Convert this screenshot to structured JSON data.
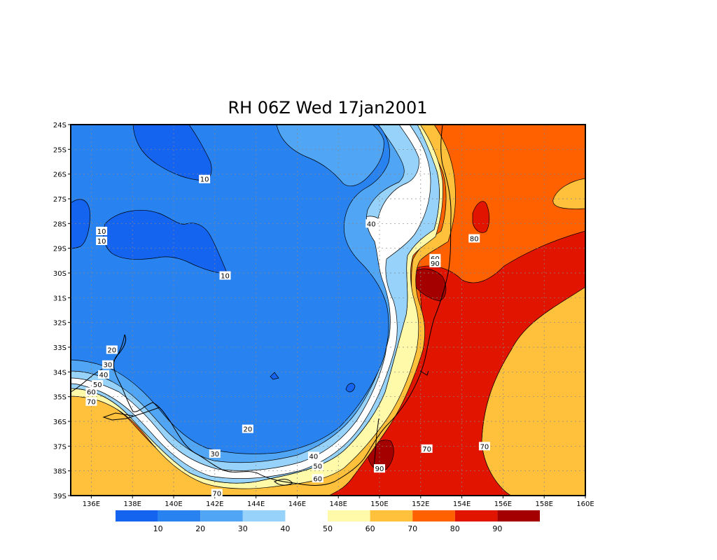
{
  "title": "RH 06Z Wed 17jan2001",
  "map": {
    "variable": "RH",
    "projection": "lat-lon",
    "grid": true,
    "lat_ticks": [
      "24S",
      "25S",
      "26S",
      "27S",
      "28S",
      "29S",
      "30S",
      "31S",
      "32S",
      "33S",
      "34S",
      "35S",
      "36S",
      "37S",
      "38S",
      "39S"
    ],
    "lon_ticks": [
      "136E",
      "138E",
      "140E",
      "142E",
      "144E",
      "146E",
      "148E",
      "150E",
      "152E",
      "154E",
      "156E",
      "158E",
      "160E"
    ],
    "lat_range": [
      -39,
      -24
    ],
    "lon_range": [
      135,
      160
    ],
    "contour_labels": [
      {
        "text": "10",
        "lon": 141.5,
        "lat": -26.2
      },
      {
        "text": "10",
        "lon": 136.5,
        "lat": -28.3
      },
      {
        "text": "10",
        "lon": 136.5,
        "lat": -28.7
      },
      {
        "text": "10",
        "lon": 142.5,
        "lat": -30.1
      },
      {
        "text": "40",
        "lon": 149.6,
        "lat": -28.0
      },
      {
        "text": "80",
        "lon": 154.6,
        "lat": -28.6
      },
      {
        "text": "60",
        "lon": 152.7,
        "lat": -29.4
      },
      {
        "text": "90",
        "lon": 152.7,
        "lat": -29.6
      },
      {
        "text": "20",
        "lon": 137.0,
        "lat": -33.1
      },
      {
        "text": "30",
        "lon": 136.8,
        "lat": -33.7
      },
      {
        "text": "40",
        "lon": 136.6,
        "lat": -34.1
      },
      {
        "text": "50",
        "lon": 136.3,
        "lat": -34.5
      },
      {
        "text": "60",
        "lon": 136.0,
        "lat": -34.8
      },
      {
        "text": "70",
        "lon": 136.0,
        "lat": -35.2
      },
      {
        "text": "20",
        "lon": 143.6,
        "lat": -36.3
      },
      {
        "text": "30",
        "lon": 142.0,
        "lat": -37.3
      },
      {
        "text": "40",
        "lon": 146.8,
        "lat": -37.4
      },
      {
        "text": "50",
        "lon": 147.0,
        "lat": -37.8
      },
      {
        "text": "60",
        "lon": 147.0,
        "lat": -38.3
      },
      {
        "text": "70",
        "lon": 142.1,
        "lat": -38.9
      },
      {
        "text": "90",
        "lon": 150.0,
        "lat": -37.9
      },
      {
        "text": "70",
        "lon": 152.3,
        "lat": -37.1
      },
      {
        "text": "70",
        "lon": 155.1,
        "lat": -37.0
      }
    ]
  },
  "colorbar": {
    "colors": [
      "#1464f0",
      "#2882f0",
      "#50a5f5",
      "#96d2fa",
      "#ffffff",
      "#fffaaa",
      "#ffc03c",
      "#ff6000",
      "#e11400",
      "#a50000"
    ],
    "labels": [
      "10",
      "20",
      "30",
      "40",
      "50",
      "60",
      "70",
      "80",
      "90"
    ]
  },
  "fill_colors": {
    "c10": "#1464f0",
    "c20": "#2882f0",
    "c30": "#50a5f5",
    "c40": "#96d2fa",
    "c50": "#ffffff",
    "c60": "#fffaaa",
    "c70": "#ffc03c",
    "c80": "#ffa000",
    "c80b": "#ff6000",
    "c90": "#e11400",
    "c100": "#a50000"
  }
}
